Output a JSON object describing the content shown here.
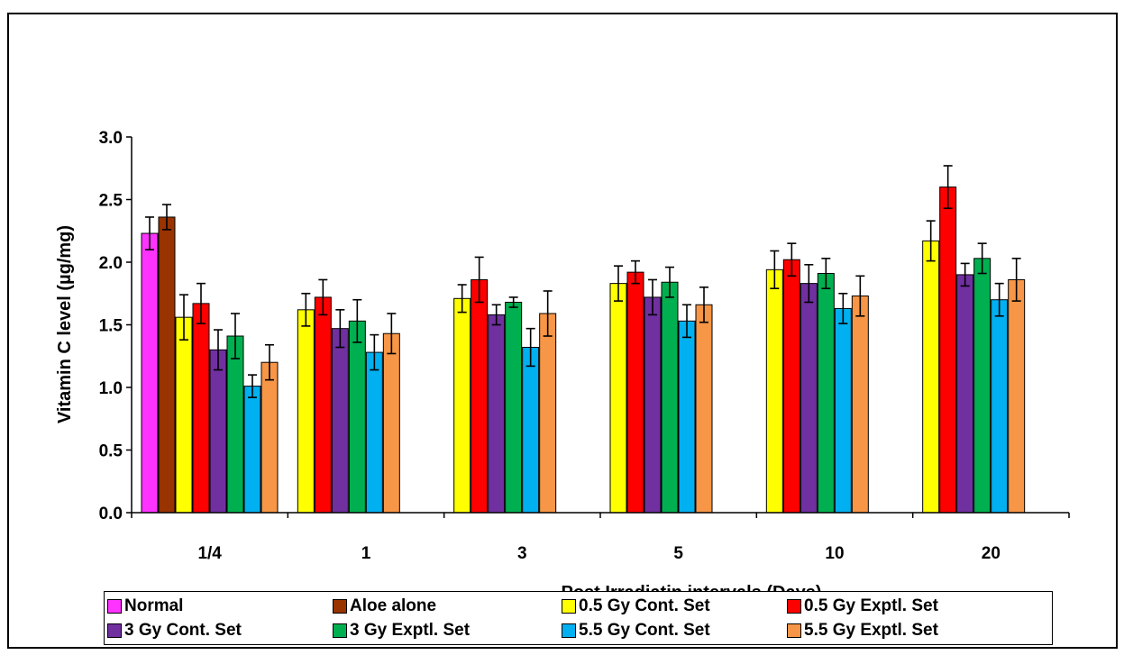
{
  "chart_data": {
    "type": "bar",
    "xlabel": "Post Irradiatin intervals (Days)",
    "ylabel": "Vitamin C level (µg/mg)",
    "ylim": [
      0,
      3.0
    ],
    "yticks": [
      "0.0",
      "0.5",
      "1.0",
      "1.5",
      "2.0",
      "2.5",
      "3.0"
    ],
    "categories": [
      "1/4",
      "1",
      "3",
      "5",
      "10",
      "20"
    ],
    "legend_position": "bottom",
    "series": [
      {
        "name": "Normal",
        "color": "#FF33FF",
        "values": [
          2.23,
          null,
          null,
          null,
          null,
          null
        ],
        "errors": [
          0.13,
          null,
          null,
          null,
          null,
          null
        ]
      },
      {
        "name": "Aloe alone",
        "color": "#993300",
        "values": [
          2.36,
          null,
          null,
          null,
          null,
          null
        ],
        "errors": [
          0.1,
          null,
          null,
          null,
          null,
          null
        ]
      },
      {
        "name": "0.5  Gy Cont. Set",
        "color": "#FFFF00",
        "values": [
          1.56,
          1.62,
          1.71,
          1.83,
          1.94,
          2.17
        ],
        "errors": [
          0.18,
          0.13,
          0.11,
          0.14,
          0.15,
          0.16
        ]
      },
      {
        "name": "0.5 Gy Exptl. Set",
        "color": "#FF0000",
        "values": [
          1.67,
          1.72,
          1.86,
          1.92,
          2.02,
          2.6
        ],
        "errors": [
          0.16,
          0.14,
          0.18,
          0.09,
          0.13,
          0.17
        ]
      },
      {
        "name": "3  Gy Cont. Set",
        "color": "#7030A0",
        "values": [
          1.3,
          1.47,
          1.58,
          1.72,
          1.83,
          1.9
        ],
        "errors": [
          0.16,
          0.15,
          0.08,
          0.14,
          0.15,
          0.09
        ]
      },
      {
        "name": "3 Gy Exptl. Set",
        "color": "#00B050",
        "values": [
          1.41,
          1.53,
          1.68,
          1.84,
          1.91,
          2.03
        ],
        "errors": [
          0.18,
          0.17,
          0.04,
          0.12,
          0.12,
          0.12
        ]
      },
      {
        "name": "5.5 Gy Cont. Set",
        "color": "#00B0F0",
        "values": [
          1.01,
          1.28,
          1.32,
          1.53,
          1.63,
          1.7
        ],
        "errors": [
          0.09,
          0.14,
          0.15,
          0.13,
          0.12,
          0.13
        ]
      },
      {
        "name": "5.5 Gy Exptl. Set",
        "color": "#F79646",
        "values": [
          1.2,
          1.43,
          1.59,
          1.66,
          1.73,
          1.86
        ],
        "errors": [
          0.14,
          0.16,
          0.18,
          0.14,
          0.16,
          0.17
        ]
      }
    ]
  }
}
